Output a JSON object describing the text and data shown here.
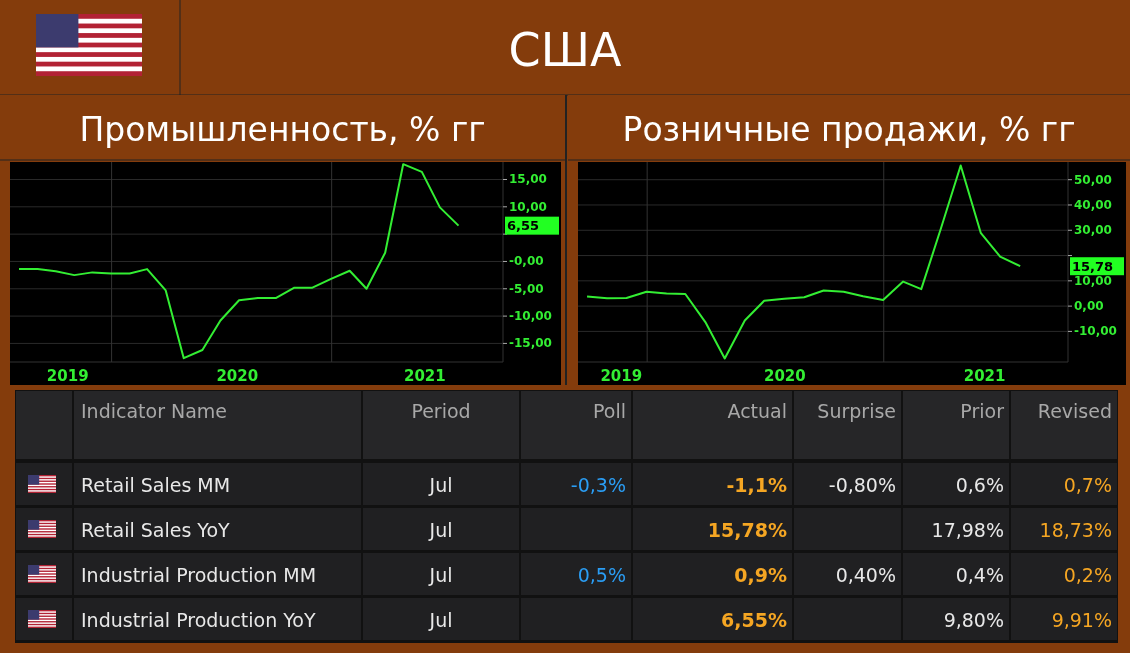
{
  "chart_data": [
    {
      "type": "other",
      "title": "США"
    },
    {
      "type": "line",
      "title": "Промышленность, % гг",
      "x": [
        "2019-07-31",
        "2019-08-31",
        "2019-09-30",
        "2019-10-31",
        "2019-11-30",
        "2019-12-31",
        "2020-01-31",
        "2020-02-29",
        "2020-03-31",
        "2020-04-30",
        "2020-05-31",
        "2020-06-30",
        "2020-07-31",
        "2020-08-31",
        "2020-09-30",
        "2020-10-31",
        "2020-11-30",
        "2020-12-31",
        "2021-01-31",
        "2021-02-28",
        "2021-03-31",
        "2021-04-30",
        "2021-05-31",
        "2021-06-30",
        "2021-07-31"
      ],
      "series": [
        {
          "color": "#33ee33",
          "values": [
            -1.4,
            -1.4,
            -1.8,
            -2.5,
            -2.0,
            -2.2,
            -2.2,
            -1.4,
            -5.3,
            -17.7,
            -16.2,
            -10.8,
            -7.1,
            -6.7,
            -6.7,
            -4.8,
            -4.8,
            -3.2,
            -1.7,
            -5.0,
            1.6,
            17.8,
            16.4,
            9.9,
            6.55
          ]
        }
      ],
      "xlim": [
        "2019-07-16",
        "2021-10-13"
      ],
      "xticks": [
        {
          "value": "2019-10-20",
          "label": "2019"
        },
        {
          "value": "2020-01-01",
          "label": null
        },
        {
          "value": "2020-07-28",
          "label": "2020"
        },
        {
          "value": "2021-01-01",
          "label": null
        },
        {
          "value": "2021-06-05",
          "label": "2021"
        }
      ],
      "ylim": [
        -18.4,
        18.2
      ],
      "yticks": [
        {
          "value": -15,
          "label": "-15,00"
        },
        {
          "value": -10,
          "label": "-10,00"
        },
        {
          "value": -5,
          "label": "-5,00"
        },
        {
          "value": 0,
          "label": "-0,00"
        },
        {
          "value": 5,
          "label": null
        },
        {
          "value": 10,
          "label": "10,00"
        },
        {
          "value": 15,
          "label": "15,00"
        }
      ],
      "grid": true,
      "marker": "none",
      "line_style": "solid",
      "annotations": [
        "6,55"
      ]
    },
    {
      "type": "line",
      "title": "Розничные продажи, % гг",
      "x": [
        "2019-09-30",
        "2019-10-31",
        "2019-11-30",
        "2019-12-31",
        "2020-01-31",
        "2020-02-29",
        "2020-03-31",
        "2020-04-30",
        "2020-05-31",
        "2020-06-30",
        "2020-07-31",
        "2020-08-31",
        "2020-09-30",
        "2020-10-31",
        "2020-11-30",
        "2020-12-31",
        "2021-01-31",
        "2021-02-28",
        "2021-03-31",
        "2021-04-30",
        "2021-05-31",
        "2021-06-30",
        "2021-07-31"
      ],
      "series": [
        {
          "color": "#33ee33",
          "values": [
            3.8,
            3.1,
            3.2,
            5.7,
            5.0,
            4.8,
            -6.3,
            -20.7,
            -5.7,
            2.1,
            2.9,
            3.5,
            6.2,
            5.7,
            3.9,
            2.4,
            9.7,
            6.7,
            31.2,
            55.6,
            29.0,
            19.6,
            15.78
          ]
        }
      ],
      "xlim": [
        "2019-09-16",
        "2021-10-13"
      ],
      "xticks": [
        {
          "value": "2019-11-22",
          "label": "2019"
        },
        {
          "value": "2020-01-01",
          "label": null
        },
        {
          "value": "2020-08-01",
          "label": "2020"
        },
        {
          "value": "2021-01-01",
          "label": null
        },
        {
          "value": "2021-06-06",
          "label": "2021"
        }
      ],
      "ylim": [
        -22.1,
        57
      ],
      "yticks": [
        {
          "value": -10,
          "label": "-10,00"
        },
        {
          "value": 0,
          "label": "0,00"
        },
        {
          "value": 10,
          "label": "10,00"
        },
        {
          "value": 20,
          "label": null
        },
        {
          "value": 30,
          "label": "30,00"
        },
        {
          "value": 40,
          "label": "40,00"
        },
        {
          "value": 50,
          "label": "50,00"
        }
      ],
      "grid": true,
      "marker": "none",
      "line_style": "solid",
      "annotations": [
        "15,78"
      ]
    },
    {
      "type": "other",
      "categories": [
        null,
        "Indicator Name",
        "Period",
        "Poll",
        "Actual",
        "Surprise",
        "Prior",
        "Revised"
      ],
      "annotations": [
        "Retail Sales MM",
        "Jul",
        "-0,3%",
        "-1,1%",
        "-0,80%",
        "0,6%",
        "0,7%",
        "Retail Sales YoY",
        "Jul",
        null,
        "15,78%",
        null,
        "17,98%",
        "18,73%",
        "Industrial Production MM",
        "Jul",
        "0,5%",
        "0,9%",
        "0,40%",
        "0,4%",
        "0,2%",
        "Industrial Production YoY",
        "Jul",
        null,
        "6,55%",
        null,
        "9,80%",
        "9,91%"
      ]
    }
  ]
}
